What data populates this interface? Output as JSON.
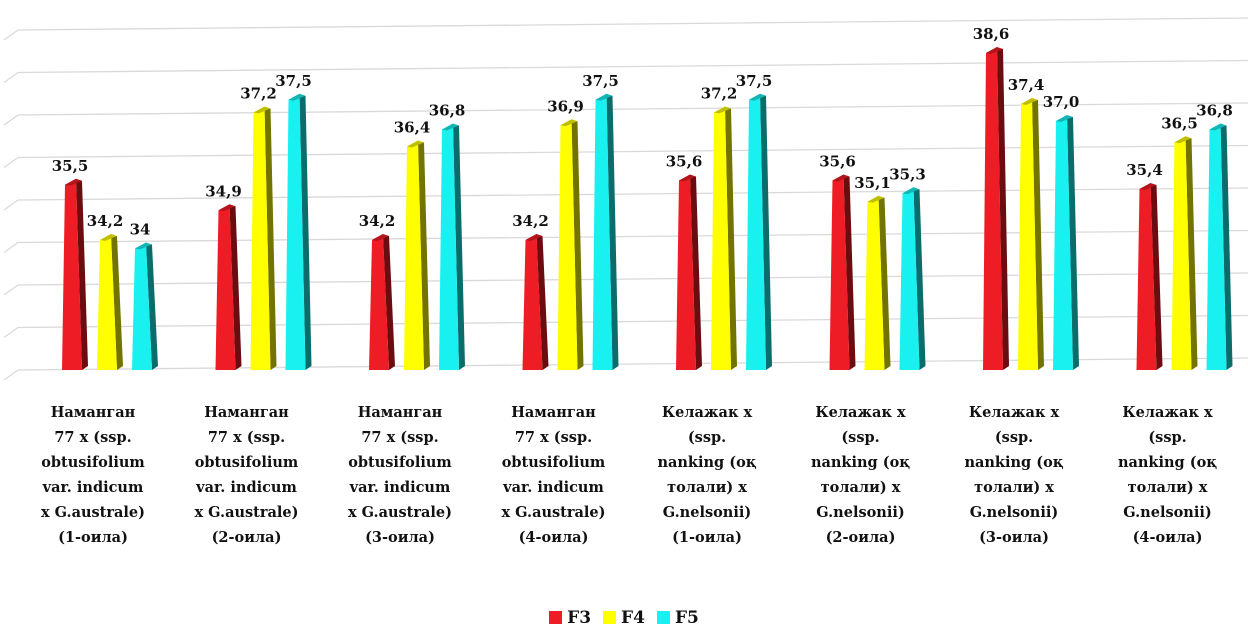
{
  "chart_data": {
    "type": "bar",
    "title": "",
    "xlabel": "",
    "ylabel": "",
    "ylim": [
      31,
      39
    ],
    "grid": true,
    "legend_position": "bottom-center",
    "categories": [
      [
        "Наманган",
        "77 x (ssp.",
        "obtusifolium",
        "var. indicum",
        "x G.australe)",
        "(1-оила)"
      ],
      [
        "Наманган",
        "77 x (ssp.",
        "obtusifolium",
        "var. indicum",
        "x G.australe)",
        "(2-оила)"
      ],
      [
        "Наманган",
        "77 x (ssp.",
        "obtusifolium",
        "var. indicum",
        "x G.australe)",
        "(3-оила)"
      ],
      [
        "Наманган",
        "77 x (ssp.",
        "obtusifolium",
        "var. indicum",
        "x G.australe)",
        "(4-оила)"
      ],
      [
        "Келажак x",
        "(ssp.",
        "nanking (оқ",
        "толали) x",
        "G.nelsonii)",
        "(1-оила)"
      ],
      [
        "Келажак x",
        "(ssp.",
        "nanking (оқ",
        "толали) x",
        "G.nelsonii)",
        "(2-оила)"
      ],
      [
        "Келажак x",
        "(ssp.",
        "nanking (оқ",
        "толали) x",
        "G.nelsonii)",
        "(3-оила)"
      ],
      [
        "Келажак x",
        "(ssp.",
        "nanking (оқ",
        "толали) x",
        "G.nelsonii)",
        "(4-оила)"
      ]
    ],
    "series": [
      {
        "name": "F3",
        "color": "#ee1c24",
        "values": [
          35.5,
          34.9,
          34.2,
          34.2,
          35.6,
          35.6,
          38.6,
          35.4
        ],
        "labels": [
          "35,5",
          "34,9",
          "34,2",
          "34,2",
          "35,6",
          "35,6",
          "38,6",
          "35,4"
        ]
      },
      {
        "name": "F4",
        "color": "#ffff00",
        "values": [
          34.2,
          37.2,
          36.4,
          36.9,
          37.2,
          35.1,
          37.4,
          36.5
        ],
        "labels": [
          "34,2",
          "37,2",
          "36,4",
          "36,9",
          "37,2",
          "35,1",
          "37,4",
          "36,5"
        ]
      },
      {
        "name": "F5",
        "color": "#19f1f1",
        "values": [
          34.0,
          37.5,
          36.8,
          37.5,
          37.5,
          35.3,
          37.0,
          36.8
        ],
        "labels": [
          "34",
          "37,5",
          "36,8",
          "37,5",
          "37,5",
          "35,3",
          "37,0",
          "36,8"
        ]
      }
    ]
  }
}
